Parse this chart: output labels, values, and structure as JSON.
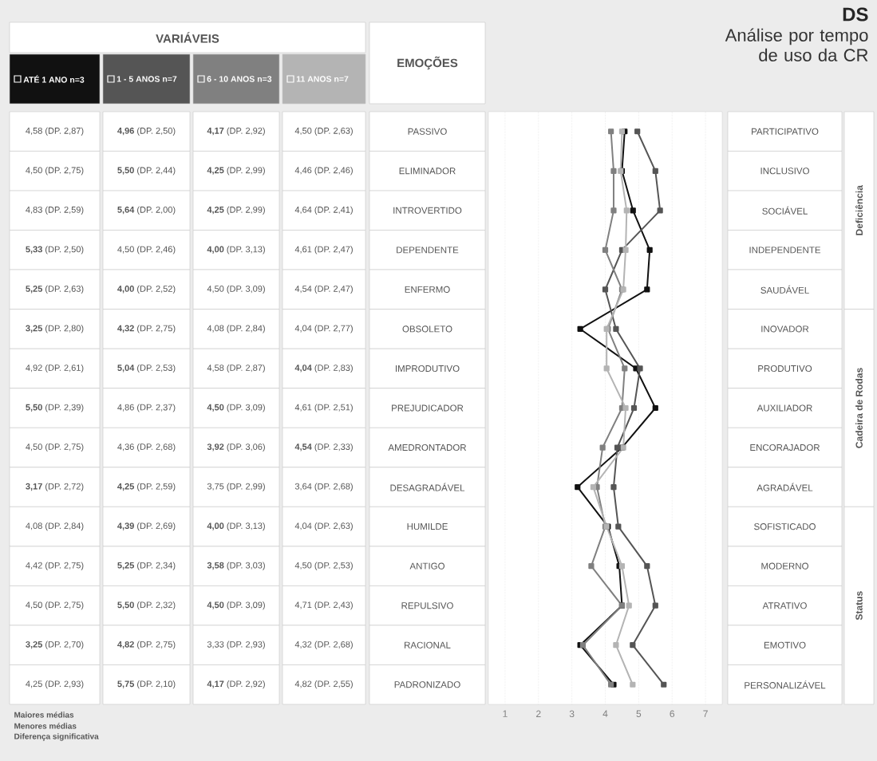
{
  "chart_data": {
    "type": "line",
    "orientation": "horizontal",
    "title": "DS",
    "subtitle": "Análise por tempo de uso da CR",
    "ylabel": "EMOÇÕES",
    "legend_title": "VARIÁVEIS",
    "legend": "top left",
    "grid": "x",
    "marker": "square",
    "line_style": "solid",
    "categories": [
      "PASSIVO",
      "ELIMINADOR",
      "INTROVERTIDO",
      "DEPENDENTE",
      "ENFERMO",
      "OBSOLETO",
      "IMPRODUTIVO",
      "PREJUDICADOR",
      "AMEDRONTADOR",
      "DESAGRADÁVEL",
      "HUMILDE",
      "ANTIGO",
      "REPULSIVO",
      "RACIONAL",
      "PADRONIZADO"
    ],
    "y2_categories": [
      "PARTICIPATIVO",
      "INCLUSIVO",
      "SOCIÁVEL",
      "INDEPENDENTE",
      "SAUDÁVEL",
      "INOVADOR",
      "PRODUTIVO",
      "AUXILIADOR",
      "ENCORAJADOR",
      "AGRADÁVEL",
      "SOFISTICADO",
      "MODERNO",
      "ATRATIVO",
      "EMOTIVO",
      "PERSONALIZÁVEL"
    ],
    "xlim": [
      0.5,
      7.5
    ],
    "xticks": [
      1,
      2,
      3,
      4,
      5,
      6,
      7
    ],
    "series": [
      {
        "name": "ATÉ 1 ANO n=3",
        "color": "#111111",
        "values": [
          4.58,
          4.5,
          4.83,
          5.33,
          5.25,
          3.25,
          4.92,
          5.5,
          4.5,
          3.17,
          4.08,
          4.42,
          4.5,
          3.25,
          4.25
        ],
        "value_labels": [
          "4,58 (DP. 2,87)",
          "4,50 (DP. 2,75)",
          "4,83 (DP. 2,59)",
          "**5,33** (DP. 2,50)",
          "**5,25** (DP. 2,63)",
          "**3,25** (DP. 2,80)",
          "4,92 (DP. 2,61)",
          "**5,50** (DP. 2,39)",
          "4,50 (DP. 2,75)",
          "**3,17** (DP. 2,72)",
          "4,08 (DP. 2,84)",
          "4,42 (DP. 2,75)",
          "4,50 (DP. 2,75)",
          "**3,25** (DP. 2,70)",
          "4,25 (DP. 2,93)"
        ]
      },
      {
        "name": "1 - 5 ANOS n=7",
        "color": "#555555",
        "values": [
          4.96,
          5.5,
          5.64,
          4.5,
          4.0,
          4.32,
          5.04,
          4.86,
          4.36,
          4.25,
          4.39,
          5.25,
          5.5,
          4.82,
          5.75
        ],
        "value_labels": [
          "**4,96** (DP. 2,50)",
          "**5,50** (DP. 2,44)",
          "**5,64** (DP. 2,00)",
          "4,50 (DP. 2,46)",
          "**4,00** (DP. 2,52)",
          "**4,32** (DP. 2,75)",
          "**5,04** (DP. 2,53)",
          "4,86 (DP. 2,37)",
          "4,36 (DP. 2,68)",
          "**4,25** (DP. 2,59)",
          "**4,39** (DP. 2,69)",
          "**5,25** (DP. 2,34)",
          "**5,50** (DP. 2,32)",
          "**4,82** (DP. 2,75)",
          "**5,75** (DP. 2,10)"
        ]
      },
      {
        "name": "6 - 10 ANOS n=3",
        "color": "#808080",
        "values": [
          4.17,
          4.25,
          4.25,
          4.0,
          4.5,
          4.08,
          4.58,
          4.5,
          3.92,
          3.75,
          4.0,
          3.58,
          4.5,
          3.33,
          4.17
        ],
        "value_labels": [
          "**4,17** (DP. 2,92)",
          "**4,25** (DP. 2,99)",
          "**4,25** (DP. 2,99)",
          "**4,00** (DP. 3,13)",
          "4,50 (DP. 3,09)",
          "4,08 (DP. 2,84)",
          "4,58 (DP. 2,87)",
          "**4,50** (DP. 3,09)",
          "**3,92** (DP. 3,06)",
          "3,75 (DP. 2,99)",
          "**4,00** (DP. 3,13)",
          "**3,58** (DP. 3,03)",
          "**4,50** (DP. 3,09)",
          "3,33 (DP. 2,93)",
          "**4,17** (DP. 2,92)"
        ]
      },
      {
        "name": "11 ANOS n=7",
        "color": "#b4b4b4",
        "values": [
          4.5,
          4.46,
          4.64,
          4.61,
          4.54,
          4.04,
          4.04,
          4.61,
          4.54,
          3.64,
          4.04,
          4.5,
          4.71,
          4.32,
          4.82
        ],
        "value_labels": [
          "4,50 (DP. 2,63)",
          "4,46 (DP. 2,46)",
          "4,64 (DP. 2,41)",
          "4,61 (DP. 2,47)",
          "4,54 (DP. 2,47)",
          "4,04 (DP. 2,77)",
          "**4,04** (DP. 2,83)",
          "4,61 (DP. 2,51)",
          "**4,54** (DP. 2,33)",
          "3,64 (DP. 2,68)",
          "4,04 (DP. 2,63)",
          "4,50 (DP. 2,53)",
          "4,71 (DP. 2,43)",
          "4,32 (DP. 2,68)",
          "4,82 (DP. 2,55)"
        ]
      }
    ],
    "annotations": [
      "Deficiência",
      "Cadeira de Rodas",
      "Status",
      "Maiores médias",
      "Menores médias",
      "Diferença significativa"
    ]
  }
}
